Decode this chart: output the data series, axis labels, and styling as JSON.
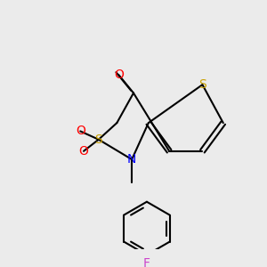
{
  "background_color": "#ebebeb",
  "bond_color": "#000000",
  "bond_width": 1.5,
  "colors": {
    "S": "#c8a000",
    "N": "#0000ff",
    "O": "#ff0000",
    "F": "#cc44cc",
    "C": "#000000"
  },
  "font_size": 9
}
